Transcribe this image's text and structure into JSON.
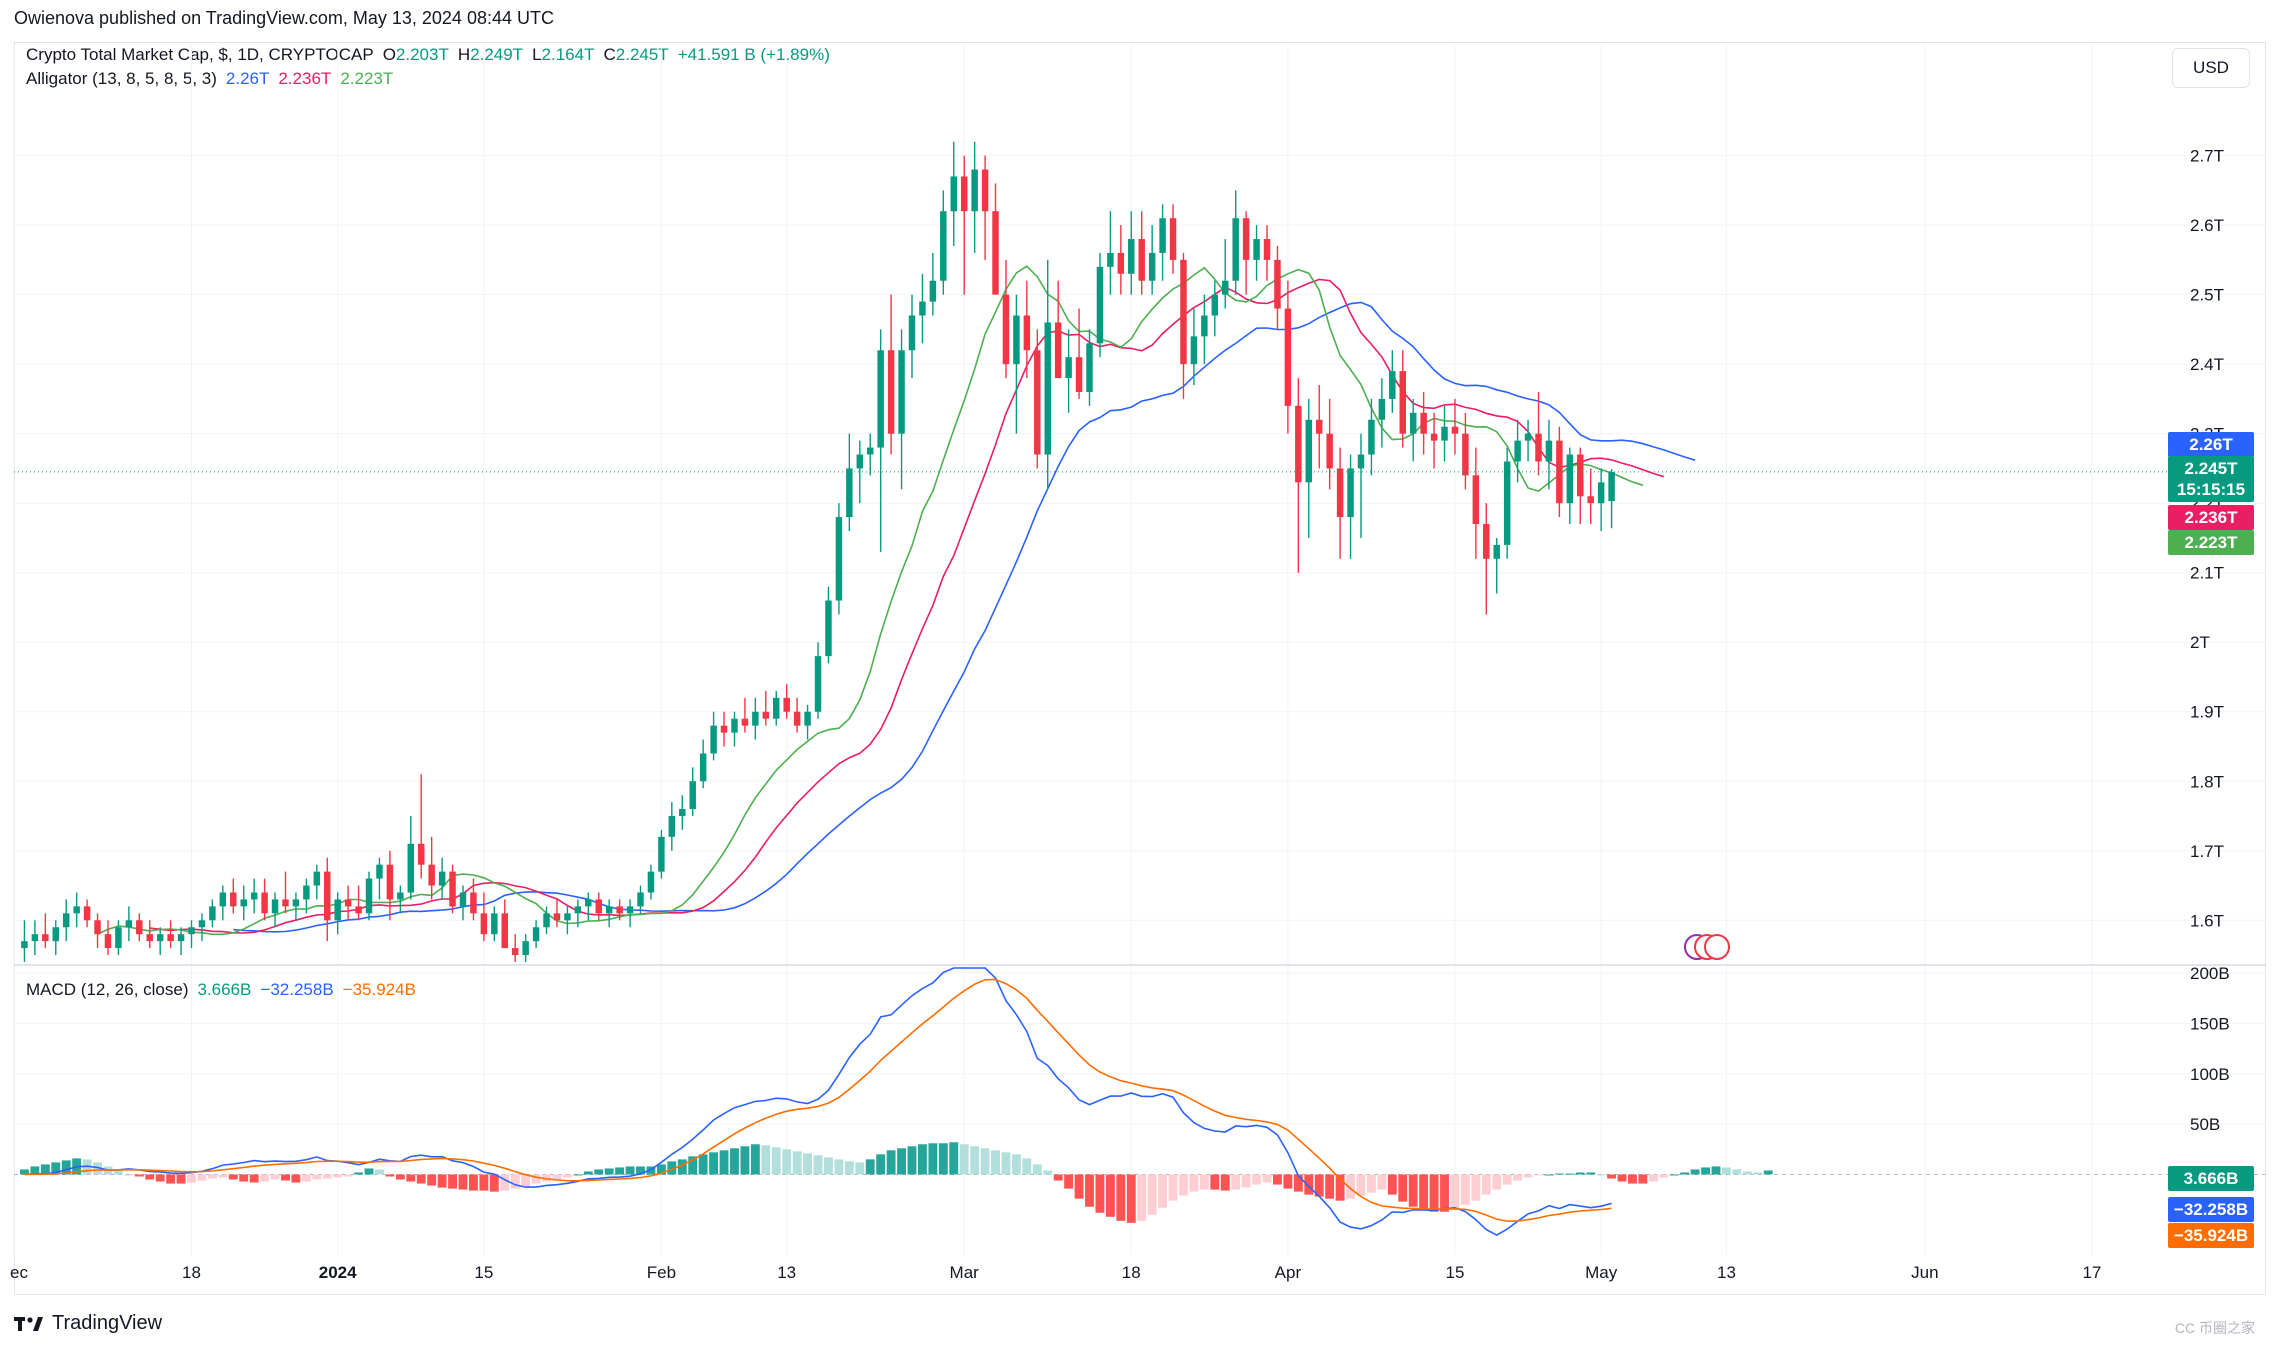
{
  "header": {
    "published": "Owienova published on TradingView.com, May 13, 2024 08:44 UTC",
    "symbol": "Crypto Total Market Cap, $, 1D, CRYPTOCAP",
    "open_label": "O",
    "open": "2.203T",
    "high_label": "H",
    "high": "2.249T",
    "low_label": "L",
    "low": "2.164T",
    "close_label": "C",
    "close": "2.245T",
    "change": "+41.591 B (+1.89%)",
    "alligator_label": "Alligator (13, 8, 5, 8, 5, 3)",
    "alligator_jaw": "2.26T",
    "alligator_teeth": "2.236T",
    "alligator_lips": "2.223T",
    "macd_label": "MACD (12, 26, close)",
    "macd_hist": "3.666B",
    "macd_line": "−32.258B",
    "macd_signal": "−35.924B"
  },
  "currency_button": "USD",
  "price_badges": {
    "jaw": "2.26T",
    "last": "2.245T",
    "countdown": "15:15:15",
    "teeth": "2.236T",
    "lips": "2.223T"
  },
  "macd_badges": {
    "hist": "3.666B",
    "macd": "−32.258B",
    "signal": "−35.924B"
  },
  "footer": {
    "brand": "TradingView",
    "watermark": "CC 币圈之家"
  },
  "colors": {
    "up": "#089981",
    "down": "#f23645",
    "jaw": "#2962ff",
    "teeth": "#e91e63",
    "lips": "#4caf50",
    "macd": "#2962ff",
    "signal": "#ff6d00",
    "hist_up_strong": "#26a69a",
    "hist_up_weak": "#b2dfdb",
    "hist_down_strong": "#ff5252",
    "hist_down_weak": "#ffcdd2"
  },
  "chart_data": [
    {
      "type": "candlestick",
      "title": "Crypto Total Market Cap, $, 1D, CRYPTOCAP",
      "y_ticks": [
        "1.6T",
        "1.7T",
        "1.8T",
        "1.9T",
        "2T",
        "2.1T",
        "2.2T",
        "2.3T",
        "2.4T",
        "2.5T",
        "2.6T",
        "2.7T"
      ],
      "ylim": [
        1.54,
        2.78
      ],
      "x_ticks": [
        "ec",
        "18",
        "2024",
        "15",
        "Feb",
        "13",
        "Mar",
        "18",
        "Apr",
        "15",
        "May",
        "13",
        "Jun",
        "17"
      ],
      "x_tick_day_index": [
        -1,
        16,
        30,
        44,
        61,
        73,
        90,
        106,
        121,
        137,
        151,
        163,
        182,
        198
      ],
      "x_range_days": [
        -1,
        205
      ],
      "ohlc": [
        [
          1.56,
          1.6,
          1.53,
          1.57
        ],
        [
          1.57,
          1.6,
          1.55,
          1.58
        ],
        [
          1.58,
          1.61,
          1.56,
          1.57
        ],
        [
          1.57,
          1.6,
          1.55,
          1.59
        ],
        [
          1.59,
          1.63,
          1.57,
          1.61
        ],
        [
          1.61,
          1.64,
          1.59,
          1.62
        ],
        [
          1.62,
          1.63,
          1.59,
          1.6
        ],
        [
          1.6,
          1.61,
          1.56,
          1.58
        ],
        [
          1.58,
          1.6,
          1.55,
          1.56
        ],
        [
          1.56,
          1.6,
          1.55,
          1.59
        ],
        [
          1.59,
          1.62,
          1.57,
          1.6
        ],
        [
          1.6,
          1.61,
          1.57,
          1.58
        ],
        [
          1.58,
          1.6,
          1.56,
          1.57
        ],
        [
          1.57,
          1.59,
          1.55,
          1.58
        ],
        [
          1.58,
          1.6,
          1.56,
          1.57
        ],
        [
          1.57,
          1.59,
          1.55,
          1.58
        ],
        [
          1.58,
          1.6,
          1.56,
          1.59
        ],
        [
          1.59,
          1.61,
          1.57,
          1.6
        ],
        [
          1.6,
          1.63,
          1.59,
          1.62
        ],
        [
          1.62,
          1.65,
          1.6,
          1.64
        ],
        [
          1.64,
          1.66,
          1.61,
          1.62
        ],
        [
          1.62,
          1.65,
          1.6,
          1.63
        ],
        [
          1.63,
          1.66,
          1.61,
          1.64
        ],
        [
          1.64,
          1.66,
          1.6,
          1.61
        ],
        [
          1.61,
          1.64,
          1.59,
          1.63
        ],
        [
          1.63,
          1.67,
          1.61,
          1.62
        ],
        [
          1.62,
          1.64,
          1.6,
          1.63
        ],
        [
          1.63,
          1.66,
          1.61,
          1.65
        ],
        [
          1.65,
          1.68,
          1.63,
          1.67
        ],
        [
          1.67,
          1.69,
          1.57,
          1.6
        ],
        [
          1.6,
          1.64,
          1.58,
          1.63
        ],
        [
          1.63,
          1.65,
          1.6,
          1.62
        ],
        [
          1.62,
          1.65,
          1.6,
          1.61
        ],
        [
          1.61,
          1.67,
          1.6,
          1.66
        ],
        [
          1.66,
          1.69,
          1.63,
          1.68
        ],
        [
          1.68,
          1.7,
          1.6,
          1.63
        ],
        [
          1.63,
          1.65,
          1.61,
          1.64
        ],
        [
          1.64,
          1.75,
          1.63,
          1.71
        ],
        [
          1.71,
          1.81,
          1.66,
          1.68
        ],
        [
          1.68,
          1.72,
          1.63,
          1.65
        ],
        [
          1.65,
          1.69,
          1.63,
          1.67
        ],
        [
          1.67,
          1.68,
          1.61,
          1.62
        ],
        [
          1.62,
          1.65,
          1.6,
          1.64
        ],
        [
          1.64,
          1.66,
          1.6,
          1.61
        ],
        [
          1.61,
          1.64,
          1.57,
          1.58
        ],
        [
          1.58,
          1.62,
          1.57,
          1.61
        ],
        [
          1.61,
          1.63,
          1.56,
          1.56
        ],
        [
          1.56,
          1.58,
          1.53,
          1.55
        ],
        [
          1.55,
          1.58,
          1.53,
          1.57
        ],
        [
          1.57,
          1.6,
          1.56,
          1.59
        ],
        [
          1.59,
          1.62,
          1.58,
          1.61
        ],
        [
          1.61,
          1.63,
          1.59,
          1.6
        ],
        [
          1.6,
          1.62,
          1.58,
          1.61
        ],
        [
          1.61,
          1.63,
          1.59,
          1.62
        ],
        [
          1.62,
          1.64,
          1.6,
          1.63
        ],
        [
          1.63,
          1.64,
          1.6,
          1.61
        ],
        [
          1.61,
          1.63,
          1.59,
          1.62
        ],
        [
          1.62,
          1.63,
          1.6,
          1.61
        ],
        [
          1.61,
          1.63,
          1.59,
          1.62
        ],
        [
          1.62,
          1.65,
          1.61,
          1.64
        ],
        [
          1.64,
          1.68,
          1.63,
          1.67
        ],
        [
          1.67,
          1.73,
          1.66,
          1.72
        ],
        [
          1.72,
          1.77,
          1.7,
          1.75
        ],
        [
          1.75,
          1.78,
          1.73,
          1.76
        ],
        [
          1.76,
          1.82,
          1.75,
          1.8
        ],
        [
          1.8,
          1.86,
          1.79,
          1.84
        ],
        [
          1.84,
          1.9,
          1.83,
          1.88
        ],
        [
          1.88,
          1.9,
          1.85,
          1.87
        ],
        [
          1.87,
          1.9,
          1.85,
          1.89
        ],
        [
          1.89,
          1.92,
          1.87,
          1.88
        ],
        [
          1.88,
          1.92,
          1.86,
          1.9
        ],
        [
          1.9,
          1.93,
          1.88,
          1.89
        ],
        [
          1.89,
          1.93,
          1.88,
          1.92
        ],
        [
          1.92,
          1.94,
          1.89,
          1.9
        ],
        [
          1.9,
          1.92,
          1.87,
          1.88
        ],
        [
          1.88,
          1.91,
          1.86,
          1.9
        ],
        [
          1.9,
          2.0,
          1.89,
          1.98
        ],
        [
          1.98,
          2.08,
          1.97,
          2.06
        ],
        [
          2.06,
          2.2,
          2.04,
          2.18
        ],
        [
          2.18,
          2.3,
          2.16,
          2.25
        ],
        [
          2.25,
          2.29,
          2.2,
          2.27
        ],
        [
          2.27,
          2.3,
          2.24,
          2.28
        ],
        [
          2.28,
          2.45,
          2.13,
          2.42
        ],
        [
          2.42,
          2.5,
          2.27,
          2.3
        ],
        [
          2.3,
          2.45,
          2.22,
          2.42
        ],
        [
          2.42,
          2.5,
          2.38,
          2.47
        ],
        [
          2.47,
          2.53,
          2.43,
          2.49
        ],
        [
          2.49,
          2.56,
          2.47,
          2.52
        ],
        [
          2.52,
          2.65,
          2.5,
          2.62
        ],
        [
          2.62,
          2.72,
          2.57,
          2.67
        ],
        [
          2.67,
          2.7,
          2.5,
          2.62
        ],
        [
          2.62,
          2.72,
          2.56,
          2.68
        ],
        [
          2.68,
          2.7,
          2.55,
          2.62
        ],
        [
          2.62,
          2.66,
          2.5,
          2.5
        ],
        [
          2.5,
          2.55,
          2.38,
          2.4
        ],
        [
          2.4,
          2.5,
          2.3,
          2.47
        ],
        [
          2.47,
          2.52,
          2.38,
          2.42
        ],
        [
          2.42,
          2.45,
          2.25,
          2.27
        ],
        [
          2.27,
          2.55,
          2.22,
          2.46
        ],
        [
          2.46,
          2.52,
          2.38,
          2.38
        ],
        [
          2.38,
          2.45,
          2.33,
          2.41
        ],
        [
          2.41,
          2.48,
          2.35,
          2.36
        ],
        [
          2.36,
          2.45,
          2.34,
          2.43
        ],
        [
          2.43,
          2.56,
          2.41,
          2.54
        ],
        [
          2.54,
          2.62,
          2.5,
          2.56
        ],
        [
          2.56,
          2.6,
          2.5,
          2.53
        ],
        [
          2.53,
          2.62,
          2.5,
          2.58
        ],
        [
          2.58,
          2.62,
          2.5,
          2.52
        ],
        [
          2.52,
          2.6,
          2.5,
          2.56
        ],
        [
          2.56,
          2.63,
          2.52,
          2.61
        ],
        [
          2.61,
          2.63,
          2.53,
          2.55
        ],
        [
          2.55,
          2.56,
          2.35,
          2.4
        ],
        [
          2.4,
          2.48,
          2.37,
          2.44
        ],
        [
          2.44,
          2.5,
          2.4,
          2.47
        ],
        [
          2.47,
          2.52,
          2.44,
          2.5
        ],
        [
          2.5,
          2.58,
          2.48,
          2.52
        ],
        [
          2.52,
          2.65,
          2.5,
          2.61
        ],
        [
          2.61,
          2.62,
          2.5,
          2.55
        ],
        [
          2.55,
          2.6,
          2.52,
          2.58
        ],
        [
          2.58,
          2.6,
          2.52,
          2.55
        ],
        [
          2.55,
          2.57,
          2.45,
          2.48
        ],
        [
          2.48,
          2.52,
          2.3,
          2.34
        ],
        [
          2.34,
          2.38,
          2.1,
          2.23
        ],
        [
          2.23,
          2.35,
          2.15,
          2.32
        ],
        [
          2.32,
          2.37,
          2.25,
          2.3
        ],
        [
          2.3,
          2.35,
          2.22,
          2.25
        ],
        [
          2.25,
          2.28,
          2.12,
          2.18
        ],
        [
          2.18,
          2.27,
          2.12,
          2.25
        ],
        [
          2.25,
          2.3,
          2.15,
          2.27
        ],
        [
          2.27,
          2.35,
          2.24,
          2.32
        ],
        [
          2.32,
          2.38,
          2.28,
          2.35
        ],
        [
          2.35,
          2.42,
          2.33,
          2.39
        ],
        [
          2.39,
          2.42,
          2.28,
          2.3
        ],
        [
          2.3,
          2.35,
          2.26,
          2.33
        ],
        [
          2.33,
          2.36,
          2.27,
          2.3
        ],
        [
          2.3,
          2.33,
          2.25,
          2.29
        ],
        [
          2.29,
          2.34,
          2.26,
          2.31
        ],
        [
          2.31,
          2.35,
          2.27,
          2.3
        ],
        [
          2.3,
          2.33,
          2.22,
          2.24
        ],
        [
          2.24,
          2.28,
          2.12,
          2.17
        ],
        [
          2.17,
          2.2,
          2.04,
          2.12
        ],
        [
          2.12,
          2.15,
          2.07,
          2.14
        ],
        [
          2.14,
          2.28,
          2.12,
          2.26
        ],
        [
          2.26,
          2.32,
          2.23,
          2.29
        ],
        [
          2.29,
          2.32,
          2.26,
          2.3
        ],
        [
          2.3,
          2.36,
          2.24,
          2.26
        ],
        [
          2.26,
          2.32,
          2.22,
          2.29
        ],
        [
          2.29,
          2.31,
          2.18,
          2.2
        ],
        [
          2.2,
          2.28,
          2.17,
          2.27
        ],
        [
          2.27,
          2.28,
          2.17,
          2.21
        ],
        [
          2.21,
          2.25,
          2.17,
          2.2
        ],
        [
          2.2,
          2.25,
          2.16,
          2.23
        ],
        [
          2.203,
          2.249,
          2.164,
          2.245
        ]
      ],
      "alligator": {
        "jaw_name": "Jaw 2.26T",
        "teeth_name": "Teeth 2.236T",
        "lips_name": "Lips 2.223T"
      }
    },
    {
      "type": "bar",
      "title": "MACD (12, 26, close)",
      "y_ticks": [
        "50B",
        "100B",
        "150B",
        "200B"
      ],
      "ylim": [
        -70,
        205
      ],
      "histogram": [
        5,
        8,
        10,
        12,
        14,
        16,
        15,
        12,
        8,
        4,
        0,
        -2,
        -5,
        -7,
        -9,
        -9,
        -8,
        -6,
        -4,
        -3,
        -5,
        -7,
        -8,
        -7,
        -5,
        -6,
        -8,
        -7,
        -5,
        -4,
        -3,
        -2,
        2,
        6,
        5,
        -2,
        -5,
        -7,
        -9,
        -11,
        -13,
        -14,
        -15,
        -16,
        -16,
        -17,
        -16,
        -14,
        -12,
        -9,
        -7,
        -5,
        -3,
        0,
        3,
        5,
        6,
        7,
        8,
        8,
        8,
        10,
        13,
        15,
        18,
        20,
        22,
        24,
        26,
        28,
        30,
        29,
        27,
        25,
        23,
        21,
        19,
        17,
        15,
        13,
        12,
        15,
        20,
        24,
        26,
        28,
        30,
        31,
        31,
        32,
        30,
        28,
        26,
        24,
        22,
        20,
        16,
        10,
        4,
        -6,
        -14,
        -24,
        -32,
        -38,
        -42,
        -46,
        -48,
        -46,
        -40,
        -33,
        -26,
        -21,
        -17,
        -15,
        -15,
        -16,
        -15,
        -13,
        -10,
        -8,
        -10,
        -14,
        -17,
        -20,
        -22,
        -24,
        -26,
        -24,
        -21,
        -18,
        -15,
        -20,
        -27,
        -32,
        -35,
        -37,
        -37,
        -34,
        -30,
        -26,
        -20,
        -15,
        -10,
        -6,
        -3,
        -1,
        0,
        1,
        1,
        2,
        2,
        0,
        -4,
        -7,
        -9,
        -9,
        -7,
        -3,
        0,
        2,
        5,
        7,
        8,
        7,
        5,
        3,
        2,
        4
      ],
      "macd_line": "−32.258B",
      "signal_line": "−35.924B"
    }
  ]
}
